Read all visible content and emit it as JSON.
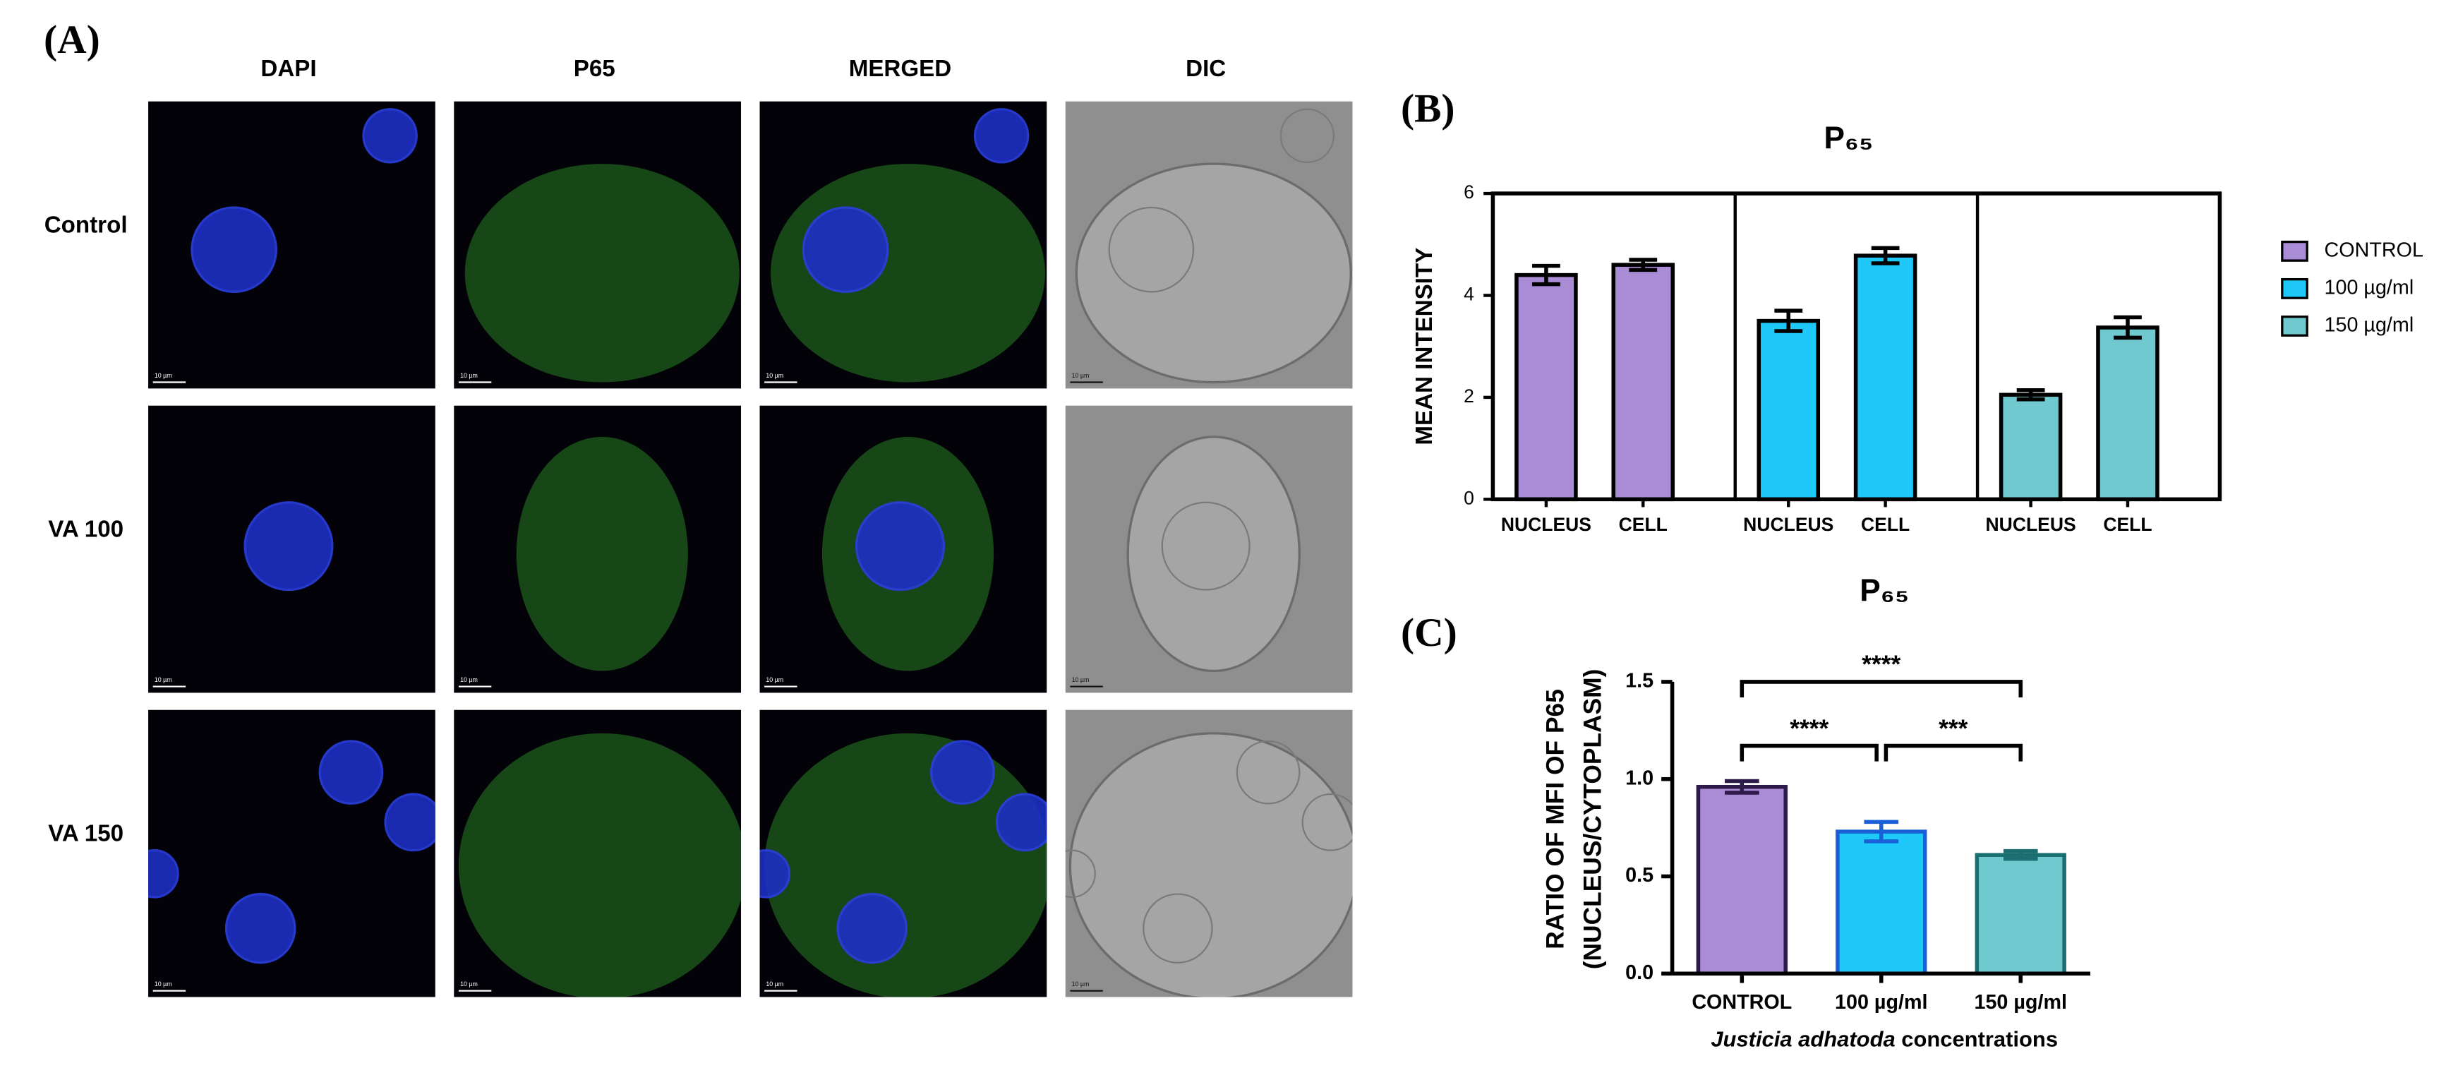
{
  "panel_a": {
    "label": "(A)",
    "columns": [
      "DAPI",
      "P65",
      "MERGED",
      "DIC"
    ],
    "rows": [
      "Control",
      "VA 100",
      "VA 150"
    ],
    "scale_bar": "10 µm"
  },
  "chart_data": [
    {
      "type": "bar",
      "panel_label": "(B)",
      "title": "P₆₅",
      "y_label": "MEAN INTENSITY",
      "facet": "series",
      "categories": [
        "NUCLEUS",
        "CELL"
      ],
      "series": [
        {
          "name": "CONTROL",
          "color": "#a98bd6",
          "values": [
            4.4,
            4.6
          ],
          "errors": [
            0.18,
            0.1
          ]
        },
        {
          "name": "100 µg/ml",
          "color": "#1ec8f8",
          "values": [
            3.5,
            4.78
          ],
          "errors": [
            0.2,
            0.15
          ]
        },
        {
          "name": "150 µg/ml",
          "color": "#6fc9cf",
          "values": [
            2.05,
            3.37
          ],
          "errors": [
            0.09,
            0.2
          ]
        }
      ],
      "ylim": [
        0,
        6
      ],
      "yticks": [
        0,
        2,
        4,
        6
      ],
      "legend": "right"
    },
    {
      "type": "bar",
      "panel_label": "(C)",
      "title": "P₆₅",
      "y_label": [
        "RATIO OF MFI OF P65",
        "(NUCLEUS/CYTOPLASM)"
      ],
      "x_label": [
        "Justicia adhatoda",
        " concentrations"
      ],
      "categories": [
        "CONTROL",
        "100 µg/ml",
        "150 µg/ml"
      ],
      "values": [
        0.96,
        0.73,
        0.61
      ],
      "errors": [
        0.03,
        0.05,
        0.02
      ],
      "colors": [
        "#a98bd6",
        "#1ec8f8",
        "#6fc9cf"
      ],
      "edge_colors": [
        "#2d1a4a",
        "#1a5fd8",
        "#1b6f73"
      ],
      "ylim": [
        0,
        1.5
      ],
      "yticks": [
        {
          "value": 0,
          "label": "0.0"
        },
        {
          "value": 0.5,
          "label": "0.5"
        },
        {
          "value": 1,
          "label": "1.0"
        },
        {
          "value": 1.5,
          "label": "1.5"
        }
      ],
      "annotations": [
        "****",
        "****",
        "***"
      ]
    }
  ]
}
